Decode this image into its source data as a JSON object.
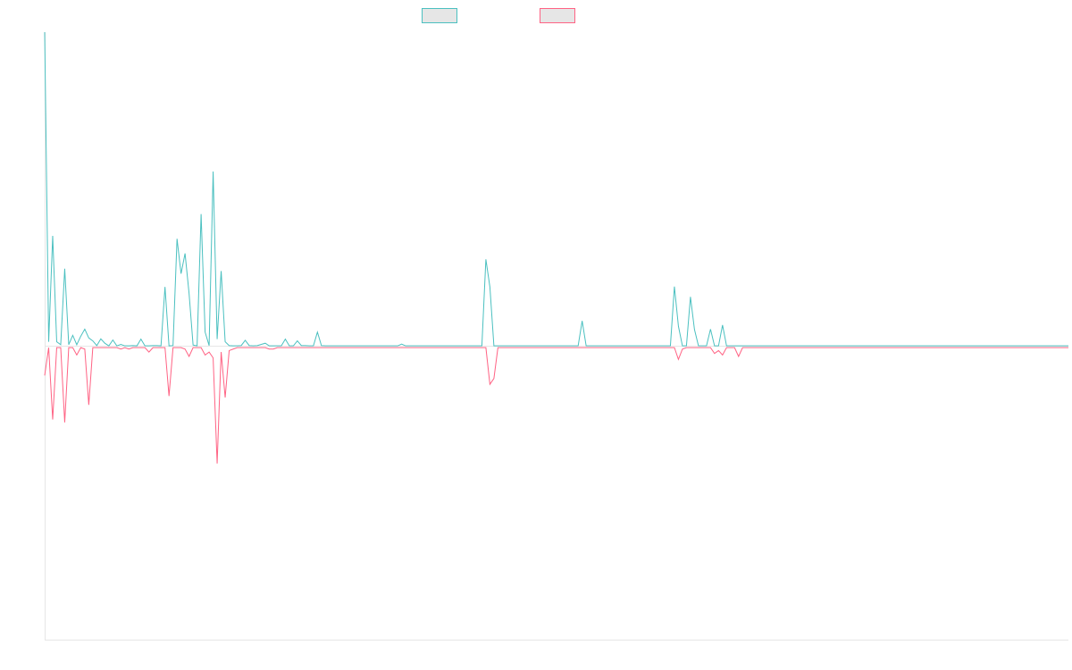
{
  "chart_data": {
    "type": "line",
    "title": "",
    "xlabel": "",
    "ylabel": "",
    "ylim": [
      -100,
      107
    ],
    "grid": false,
    "legend": "top-center",
    "x_count": 255,
    "series": [
      {
        "name": "",
        "color": "#4bc0c0",
        "values": [
          107,
          1.5,
          37.6,
          1.5,
          0.5,
          26.4,
          0.5,
          3.7,
          0.5,
          3.4,
          5.8,
          2.8,
          1.8,
          0.2,
          2.5,
          1,
          0.1,
          2.1,
          0.1,
          0.6,
          0.1,
          0.1,
          0.2,
          0.1,
          2.4,
          0.1,
          0.1,
          0.2,
          0.2,
          0.1,
          20.2,
          0.1,
          0.2,
          36.6,
          24.7,
          31.6,
          18,
          0.4,
          0.1,
          45,
          4.8,
          0.2,
          59.5,
          2.4,
          25.6,
          1.5,
          0.2,
          0.1,
          0.1,
          0.2,
          2,
          0.2,
          0.1,
          0.2,
          0.6,
          1,
          0.1,
          0.1,
          0.1,
          0.1,
          2.4,
          0.1,
          0.1,
          1.8,
          0.2,
          0.2,
          0.1,
          0.1,
          4.8,
          0.2,
          0.1,
          0.1,
          0.1,
          0.1,
          0.1,
          0.1,
          0.1,
          0.1,
          0.1,
          0.1,
          0.1,
          0.1,
          0.1,
          0.1,
          0.1,
          0.1,
          0.1,
          0.1,
          0.1,
          0.7,
          0.1,
          0.1,
          0.1,
          0.1,
          0.1,
          0.1,
          0.1,
          0.1,
          0.1,
          0.1,
          0.1,
          0.1,
          0.1,
          0.1,
          0.1,
          0.1,
          0.1,
          0.1,
          0.1,
          0.1,
          29.6,
          20.2,
          0.1,
          0.1,
          0.1,
          0.1,
          0.1,
          0.1,
          0.1,
          0.1,
          0.1,
          0.1,
          0.1,
          0.1,
          0.1,
          0.1,
          0.1,
          0.1,
          0.1,
          0.1,
          0.1,
          0.1,
          0.1,
          0.1,
          8.6,
          0.1,
          0.1,
          0.1,
          0.1,
          0.1,
          0.1,
          0.1,
          0.1,
          0.1,
          0.1,
          0.1,
          0.1,
          0.1,
          0.1,
          0.1,
          0.1,
          0.1,
          0.1,
          0.1,
          0.1,
          0.1,
          0.1,
          20.3,
          6.8,
          0.1,
          0.1,
          16.8,
          5.7,
          0.1,
          0.1,
          0.1,
          5.8,
          0.1,
          0.1,
          7.2,
          0.1,
          0.1,
          0.1,
          0.1,
          0.1,
          0.1,
          0.1,
          0.1,
          0.1,
          0.1,
          0.1,
          0.1,
          0.1,
          0.1,
          0.1,
          0.1,
          0.1,
          0.1,
          0.1,
          0.1,
          0.1,
          0.1,
          0.1,
          0.1,
          0.1,
          0.1,
          0.1,
          0.1,
          0.1,
          0.1,
          0.1,
          0.1,
          0.1,
          0.1,
          0.1,
          0.1,
          0.1,
          0.1,
          0.1,
          0.1,
          0.1,
          0.1,
          0.1,
          0.1,
          0.1,
          0.1,
          0.1,
          0.1,
          0.1,
          0.1,
          0.1,
          0.1,
          0.1,
          0.1,
          0.1,
          0.1,
          0.1,
          0.1,
          0.1,
          0.1,
          0.1,
          0.1,
          0.1,
          0.1,
          0.1,
          0.1,
          0.1,
          0.1,
          0.1,
          0.1,
          0.1,
          0.1,
          0.1,
          0.1,
          0.1,
          0.1,
          0.1,
          0.1,
          0.1,
          0.1,
          0.1,
          0.1,
          0.1,
          0.1,
          0.1,
          0.1
        ]
      },
      {
        "name": "",
        "color": "#ff6384",
        "values": [
          -10,
          -0.5,
          -25,
          -0.5,
          -0.5,
          -26,
          -0.5,
          -0.5,
          -3,
          -0.5,
          -1,
          -20,
          -0.5,
          -0.5,
          -0.5,
          -0.5,
          -0.5,
          -0.5,
          -0.5,
          -1,
          -0.5,
          -1,
          -0.5,
          -0.5,
          -0.5,
          -0.5,
          -2,
          -0.5,
          -0.5,
          -0.5,
          -0.5,
          -17,
          -0.5,
          -0.5,
          -0.5,
          -1,
          -3.5,
          -0.5,
          -0.5,
          -0.5,
          -3,
          -2,
          -4,
          -40,
          -2,
          -17.5,
          -1.5,
          -1,
          -0.5,
          -0.5,
          -0.5,
          -0.5,
          -0.5,
          -0.5,
          -0.5,
          -0.5,
          -1,
          -1,
          -0.5,
          -0.5,
          -0.5,
          -0.5,
          -0.5,
          -0.5,
          -0.5,
          -0.5,
          -0.5,
          -0.5,
          -0.5,
          -0.5,
          -0.5,
          -0.5,
          -0.5,
          -0.5,
          -0.5,
          -0.5,
          -0.5,
          -0.5,
          -0.5,
          -0.5,
          -0.5,
          -0.5,
          -0.5,
          -0.5,
          -0.5,
          -0.5,
          -0.5,
          -0.5,
          -0.5,
          -0.5,
          -0.5,
          -0.5,
          -0.5,
          -0.5,
          -0.5,
          -0.5,
          -0.5,
          -0.5,
          -0.5,
          -0.5,
          -0.5,
          -0.5,
          -0.5,
          -0.5,
          -0.5,
          -0.5,
          -0.5,
          -0.5,
          -0.5,
          -0.5,
          -0.5,
          -13,
          -11,
          -0.5,
          -0.5,
          -0.5,
          -0.5,
          -0.5,
          -0.5,
          -0.5,
          -0.5,
          -0.5,
          -0.5,
          -0.5,
          -0.5,
          -0.5,
          -0.5,
          -0.5,
          -0.5,
          -0.5,
          -0.5,
          -0.5,
          -0.5,
          -0.5,
          -0.5,
          -0.5,
          -0.5,
          -0.5,
          -0.5,
          -0.5,
          -0.5,
          -0.5,
          -0.5,
          -0.5,
          -0.5,
          -0.5,
          -0.5,
          -0.5,
          -0.5,
          -0.5,
          -0.5,
          -0.5,
          -0.5,
          -0.5,
          -0.5,
          -0.5,
          -0.5,
          -0.5,
          -4.5,
          -1,
          -0.5,
          -0.5,
          -0.5,
          -0.5,
          -0.5,
          -0.5,
          -0.5,
          -2.5,
          -1.5,
          -3,
          -0.5,
          -0.5,
          -0.5,
          -3.5,
          -0.5,
          -0.5,
          -0.5,
          -0.5,
          -0.5,
          -0.5,
          -0.5,
          -0.5,
          -0.5,
          -0.5,
          -0.5,
          -0.5,
          -0.5,
          -0.5,
          -0.5,
          -0.5,
          -0.5,
          -0.5,
          -0.5,
          -0.5,
          -0.5,
          -0.5,
          -0.5,
          -0.5,
          -0.5,
          -0.5,
          -0.5,
          -0.5,
          -0.5,
          -0.5,
          -0.5,
          -0.5,
          -0.5,
          -0.5,
          -0.5,
          -0.5,
          -0.5,
          -0.5,
          -0.5,
          -0.5,
          -0.5,
          -0.5,
          -0.5,
          -0.5,
          -0.5,
          -0.5,
          -0.5,
          -0.5,
          -0.5,
          -0.5,
          -0.5,
          -0.5,
          -0.5,
          -0.5,
          -0.5,
          -0.5,
          -0.5,
          -0.5,
          -0.5,
          -0.5,
          -0.5,
          -0.5,
          -0.5,
          -0.5,
          -0.5,
          -0.5,
          -0.5,
          -0.5,
          -0.5,
          -0.5,
          -0.5,
          -0.5,
          -0.5,
          -0.5,
          -0.5,
          -0.5,
          -0.5,
          -0.5,
          -0.5,
          -0.5
        ]
      }
    ]
  }
}
